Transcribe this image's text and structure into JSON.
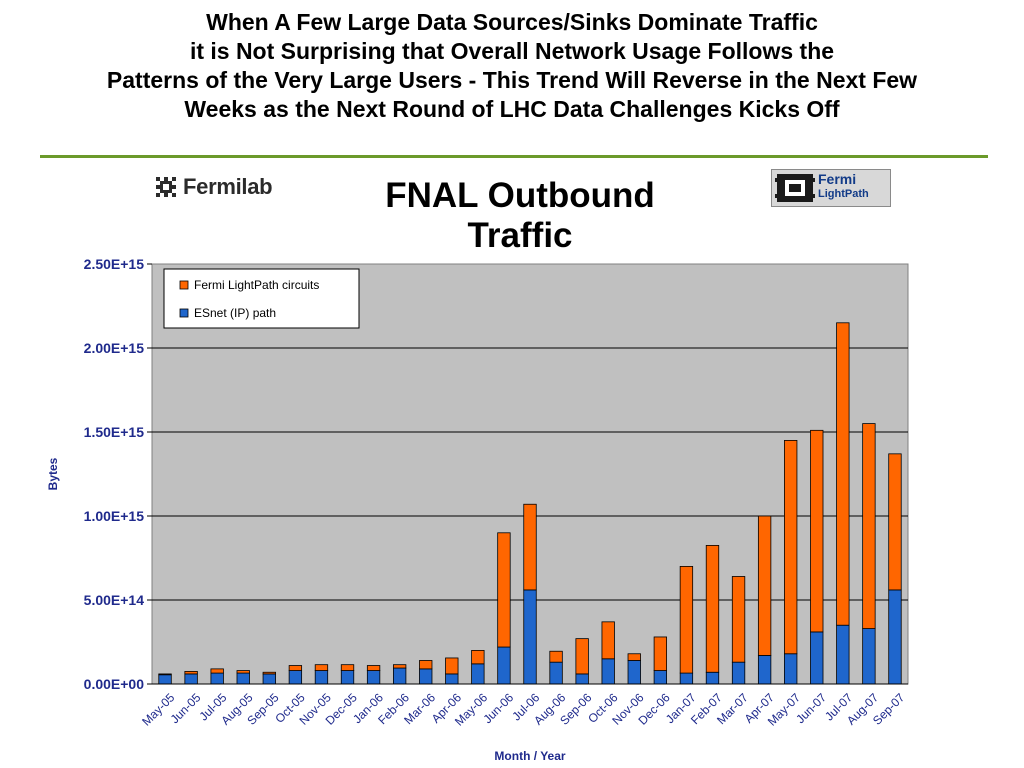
{
  "headline": {
    "lines": [
      "When A Few Large Data Sources/Sinks Dominate Traffic",
      "it is Not Surprising that Overall Network Usage Follows the",
      "Patterns of the Very Large Users - This Trend Will Reverse in the Next Few",
      "Weeks as the Next Round of LHC Data Challenges Kicks Off"
    ]
  },
  "logos": {
    "fermilab": "Fermilab",
    "lightpath_top": "Fermi",
    "lightpath_bottom": "LightPath"
  },
  "colors": {
    "plot_background": "#c0c0c0",
    "lightpath": "#ff6600",
    "esnet": "#1f66cc",
    "axis_text": "#1f2a8c",
    "divider_rule": "#6b9a2a"
  },
  "chart_data": {
    "type": "bar",
    "stacked": true,
    "title": "FNAL Outbound Traffic",
    "xlabel": "Month / Year",
    "ylabel": "Bytes",
    "ylim": [
      0,
      2500000000000000.0
    ],
    "yticks": [
      {
        "value": 0,
        "label": "0.00E+00"
      },
      {
        "value": 500000000000000.0,
        "label": "5.00E+14"
      },
      {
        "value": 1000000000000000.0,
        "label": "1.00E+15"
      },
      {
        "value": 1500000000000000.0,
        "label": "1.50E+15"
      },
      {
        "value": 2000000000000000.0,
        "label": "2.00E+15"
      },
      {
        "value": 2500000000000000.0,
        "label": "2.50E+15"
      }
    ],
    "grid": "horizontal",
    "legend_position": "top-left",
    "categories": [
      "May-05",
      "Jun-05",
      "Jul-05",
      "Aug-05",
      "Sep-05",
      "Oct-05",
      "Nov-05",
      "Dec-05",
      "Jan-06",
      "Feb-06",
      "Mar-06",
      "Apr-06",
      "May-06",
      "Jun-06",
      "Jul-06",
      "Aug-06",
      "Sep-06",
      "Oct-06",
      "Nov-06",
      "Dec-06",
      "Jan-07",
      "Feb-07",
      "Mar-07",
      "Apr-07",
      "May-07",
      "Jun-07",
      "Jul-07",
      "Aug-07",
      "Sep-07"
    ],
    "series": [
      {
        "name": "ESnet (IP) path",
        "color": "#1f66cc",
        "values": [
          55000000000000.0,
          60000000000000.0,
          65000000000000.0,
          65000000000000.0,
          60000000000000.0,
          80000000000000.0,
          80000000000000.0,
          80000000000000.0,
          80000000000000.0,
          95000000000000.0,
          90000000000000.0,
          60000000000000.0,
          120000000000000.0,
          220000000000000.0,
          560000000000000.0,
          130000000000000.0,
          60000000000000.0,
          150000000000000.0,
          140000000000000.0,
          80000000000000.0,
          65000000000000.0,
          70000000000000.0,
          130000000000000.0,
          170000000000000.0,
          180000000000000.0,
          310000000000000.0,
          350000000000000.0,
          330000000000000.0,
          560000000000000.0
        ]
      },
      {
        "name": "Fermi LightPath circuits",
        "color": "#ff6600",
        "values": [
          5000000000000.0,
          15000000000000.0,
          25000000000000.0,
          15000000000000.0,
          10000000000000.0,
          30000000000000.0,
          35000000000000.0,
          35000000000000.0,
          30000000000000.0,
          20000000000000.0,
          50000000000000.0,
          95000000000000.0,
          80000000000000.0,
          680000000000000.0,
          510000000000000.0,
          65000000000000.0,
          210000000000000.0,
          220000000000000.0,
          40000000000000.0,
          200000000000000.0,
          635000000000000.0,
          755000000000000.0,
          510000000000000.0,
          830000000000000.0,
          1270000000000000.0,
          1200000000000000.0,
          1800000000000000.0,
          1220000000000000.0,
          810000000000000.0
        ]
      }
    ],
    "legend": [
      "Fermi LightPath circuits",
      "ESnet (IP) path"
    ]
  }
}
